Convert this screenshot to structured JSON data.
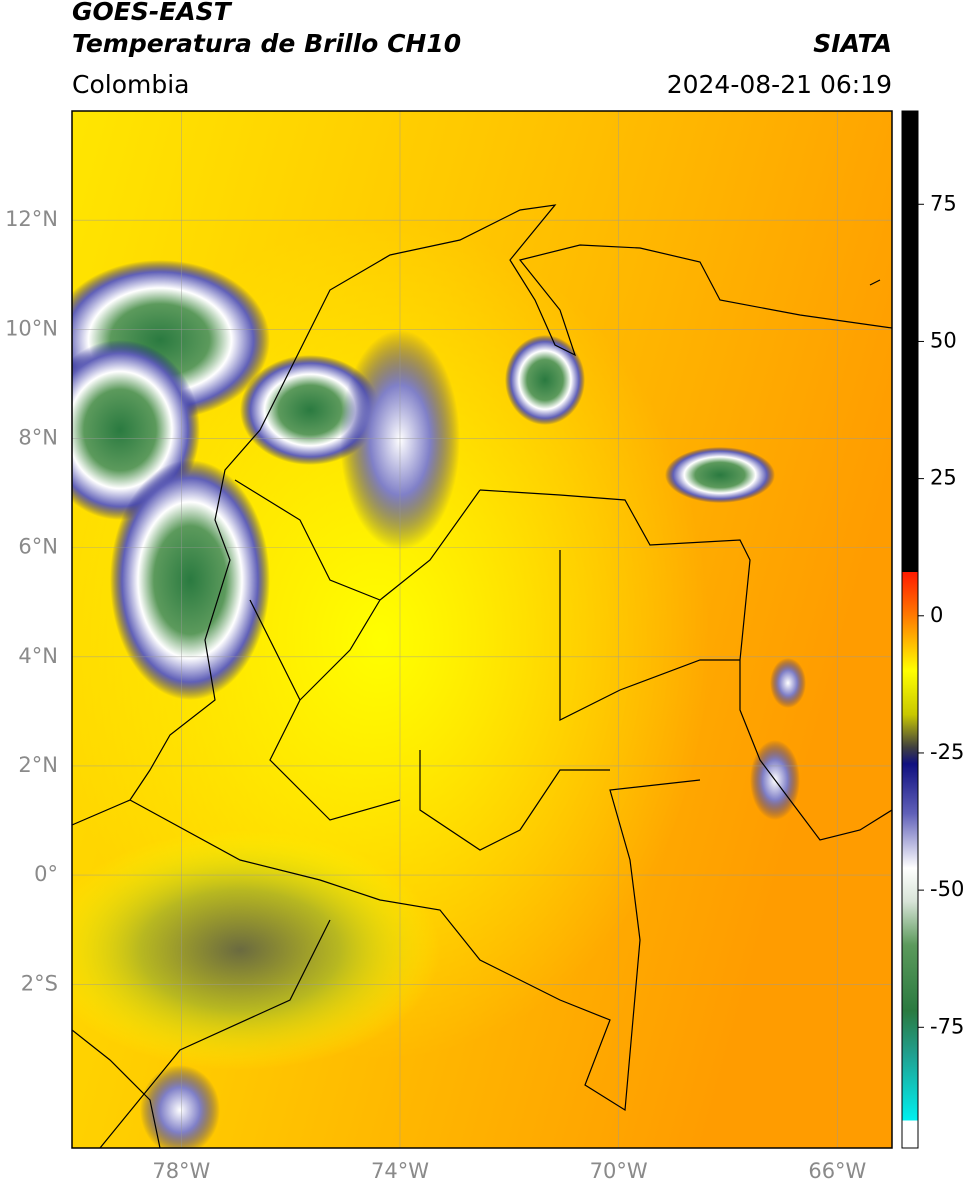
{
  "header": {
    "title": "GOES-EAST",
    "subtitle": "Temperatura de Brillo CH10",
    "source": "SIATA",
    "region": "Colombia",
    "datetime": "2024-08-21 06:19"
  },
  "map": {
    "xlim": [
      -80,
      -65
    ],
    "ylim": [
      -5,
      14
    ],
    "xticks": [
      {
        "value": -78,
        "label": "78°W"
      },
      {
        "value": -74,
        "label": "74°W"
      },
      {
        "value": -70,
        "label": "70°W"
      },
      {
        "value": -66,
        "label": "66°W"
      }
    ],
    "yticks": [
      {
        "value": 12,
        "label": "12°N"
      },
      {
        "value": 10,
        "label": "10°N"
      },
      {
        "value": 8,
        "label": "8°N"
      },
      {
        "value": 6,
        "label": "6°N"
      },
      {
        "value": 4,
        "label": "4°N"
      },
      {
        "value": 2,
        "label": "2°N"
      },
      {
        "value": 0,
        "label": "0°"
      },
      {
        "value": -2,
        "label": "2°S"
      }
    ],
    "grid": true
  },
  "colorbar": {
    "lim": [
      -97,
      92
    ],
    "ticks": [
      75,
      50,
      25,
      0,
      -25,
      -50,
      -75
    ],
    "colormap": [
      {
        "value": 92,
        "color": "#000000"
      },
      {
        "value": 8,
        "color": "#000000"
      },
      {
        "value": 8,
        "color": "#ff1a00"
      },
      {
        "value": 0,
        "color": "#ff7a00"
      },
      {
        "value": -10,
        "color": "#ffff00"
      },
      {
        "value": -18,
        "color": "#c8c800"
      },
      {
        "value": -24,
        "color": "#404040"
      },
      {
        "value": -27,
        "color": "#101080"
      },
      {
        "value": -36,
        "color": "#6060b8"
      },
      {
        "value": -46,
        "color": "#ffffff"
      },
      {
        "value": -52,
        "color": "#d8e4d8"
      },
      {
        "value": -60,
        "color": "#5c9a5c"
      },
      {
        "value": -72,
        "color": "#2a7a40"
      },
      {
        "value": -80,
        "color": "#20a090"
      },
      {
        "value": -92,
        "color": "#00f0f0"
      },
      {
        "value": -92,
        "color": "#ffffff"
      },
      {
        "value": -97,
        "color": "#ffffff"
      }
    ]
  }
}
